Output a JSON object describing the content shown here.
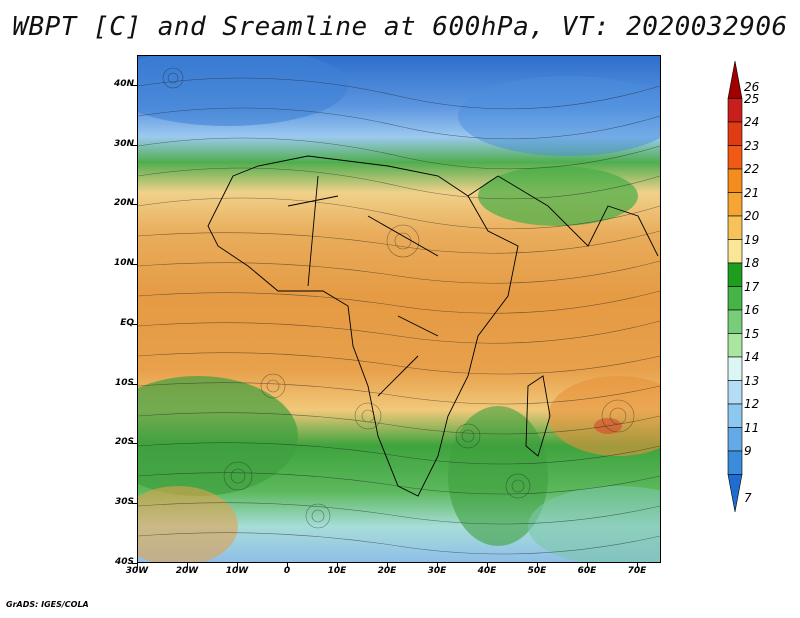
{
  "title": "WBPT [C] and Sreamline at 600hPa, VT: 2020032906",
  "footer": "GrADS: IGES/COLA",
  "latitude_labels": [
    "40N",
    "30N",
    "20N",
    "10N",
    "EQ",
    "10S",
    "20S",
    "30S",
    "40S"
  ],
  "longitude_labels": [
    "30W",
    "20W",
    "10W",
    "0",
    "10E",
    "20E",
    "30E",
    "40E",
    "50E",
    "60E",
    "70E"
  ],
  "colorbar": {
    "levels": [
      "26",
      "25",
      "24",
      "23",
      "22",
      "21",
      "20",
      "19",
      "18",
      "17",
      "16",
      "15",
      "14",
      "13",
      "12",
      "11",
      "9",
      "7"
    ],
    "colors": [
      "#a00000",
      "#c81e1e",
      "#e03c14",
      "#f05a14",
      "#f58c1e",
      "#f5a532",
      "#f5c35a",
      "#fae696",
      "#1e9e1e",
      "#46b446",
      "#78cd78",
      "#aae6a0",
      "#dcf5f5",
      "#b4dcf5",
      "#8cc8f0",
      "#64aae6",
      "#3c8cdc",
      "#1e6ed2"
    ]
  }
}
